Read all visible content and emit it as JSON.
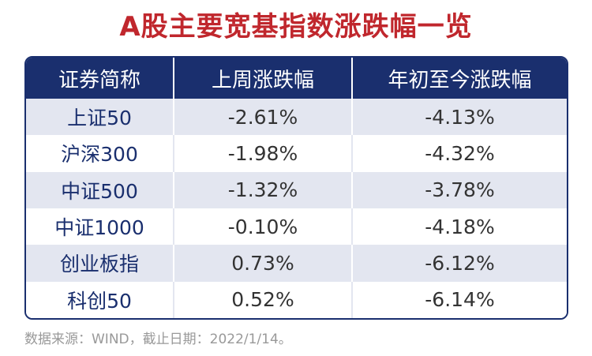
{
  "title": "A股主要宽基指数涨跌幅一览",
  "table": {
    "headers": [
      "证券简称",
      "上周涨跌幅",
      "年初至今涨跌幅"
    ],
    "rows": [
      [
        "上证50",
        "-2.61%",
        "-4.13%"
      ],
      [
        "沪深300",
        "-1.98%",
        "-4.32%"
      ],
      [
        "中证500",
        "-1.32%",
        "-3.78%"
      ],
      [
        "中证1000",
        "-0.10%",
        "-4.18%"
      ],
      [
        "创业板指",
        "0.73%",
        "-6.12%"
      ],
      [
        "科创50",
        "0.52%",
        "-6.14%"
      ]
    ]
  },
  "source": "数据来源：WIND，截止日期：2022/1/14。",
  "colors": {
    "title": "#c0272d",
    "header_bg": "#1a2f6e",
    "row_stripe": "#e3e6f0",
    "name_text": "#1a2f6e",
    "value_text": "#333333",
    "source_text": "#999999"
  }
}
